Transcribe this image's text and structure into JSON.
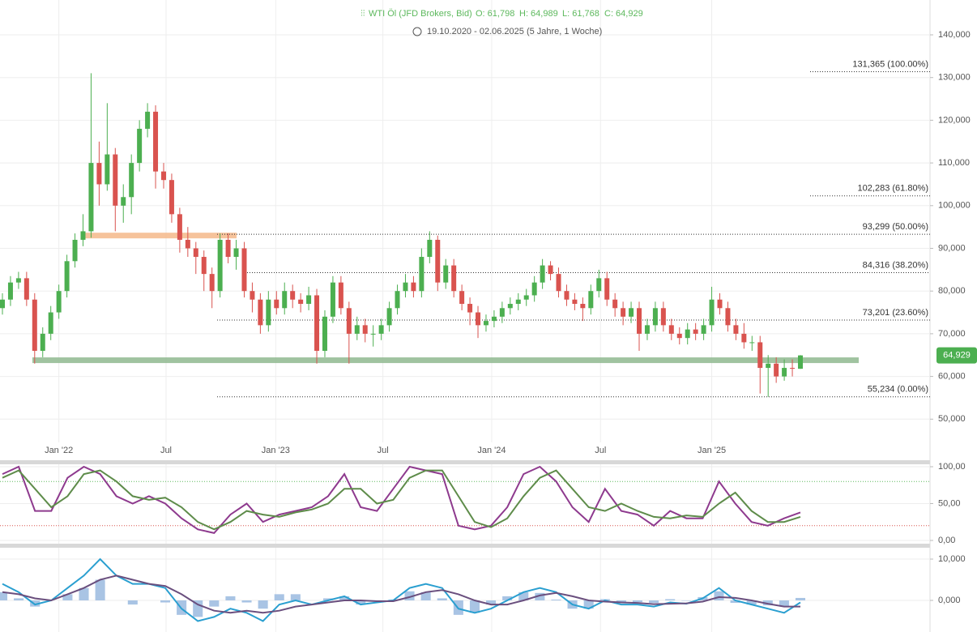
{
  "chart_data": [
    {
      "type": "candlestick",
      "title": "WTI Öl (JFD Brokers, Bid)",
      "ohlc_labels": [
        "O: 61,798",
        "H: 64,989",
        "L: 61,768",
        "C: 64,929"
      ],
      "subtitle": "19.10.2020 - 02.06.2025  (5 Jahre, 1 Woche)",
      "last_label": "64,929",
      "up_color": "#4caf50",
      "down_color": "#d9534f",
      "categories": [
        null,
        null,
        null,
        null,
        null,
        null,
        null,
        null,
        null,
        null,
        null,
        null,
        null,
        null,
        null,
        null,
        null,
        null,
        null,
        null,
        null,
        null,
        null,
        null,
        null,
        null,
        null,
        null,
        null,
        null,
        null,
        null,
        null,
        null,
        null,
        null,
        null,
        null,
        null,
        null,
        null,
        null,
        null,
        null,
        null,
        null,
        null,
        null,
        null,
        null,
        null,
        null,
        null,
        null,
        null,
        null,
        null,
        null,
        null,
        null,
        null,
        null,
        null,
        null,
        null,
        null,
        null,
        null,
        null,
        null,
        null,
        null,
        null,
        null,
        null,
        null,
        null,
        null,
        null,
        null,
        null,
        null,
        null,
        null,
        null,
        null,
        null,
        null,
        null,
        null,
        null,
        null,
        null,
        null,
        null,
        null,
        null,
        null,
        null,
        null
      ],
      "open": [
        76000,
        78000,
        82000,
        83000,
        78000,
        66000,
        70000,
        75000,
        80000,
        87000,
        92000,
        94000,
        110000,
        105000,
        112000,
        100000,
        102000,
        110000,
        118000,
        122000,
        108000,
        106000,
        98000,
        92000,
        90000,
        88000,
        84000,
        80000,
        92000,
        88000,
        90000,
        80000,
        78000,
        72000,
        78000,
        76000,
        80000,
        78000,
        77000,
        79000,
        66000,
        74000,
        82000,
        76000,
        70000,
        72000,
        70000,
        70000,
        72000,
        76000,
        80000,
        82000,
        80000,
        88000,
        92000,
        82000,
        86000,
        80000,
        77000,
        75000,
        72000,
        73000,
        74000,
        76000,
        77000,
        78000,
        79000,
        82000,
        86000,
        84000,
        80000,
        78000,
        77000,
        76000,
        80000,
        83000,
        78000,
        76000,
        74000,
        76000,
        70000,
        72000,
        76000,
        72000,
        70000,
        69000,
        71000,
        70000,
        72000,
        78000,
        76000,
        72000,
        70000,
        68000,
        68000,
        62000,
        63000,
        60000,
        62000,
        61798
      ],
      "high": [
        79500,
        83500,
        84500,
        84500,
        79500,
        71500,
        76500,
        81500,
        88500,
        93500,
        98000,
        131000,
        115000,
        124000,
        113500,
        105000,
        112000,
        120000,
        124000,
        123500,
        110000,
        107500,
        99500,
        95000,
        91500,
        89500,
        85500,
        93500,
        93500,
        92000,
        91500,
        82000,
        79500,
        80000,
        80000,
        82000,
        81500,
        79500,
        81000,
        80500,
        75500,
        83500,
        83500,
        77500,
        74000,
        73500,
        72000,
        73500,
        77500,
        81500,
        84000,
        83500,
        90000,
        94000,
        93000,
        87500,
        87500,
        81500,
        78500,
        76500,
        74500,
        75500,
        77500,
        78500,
        79500,
        80500,
        83500,
        87500,
        87000,
        85500,
        81500,
        79500,
        78500,
        81500,
        85000,
        84500,
        79500,
        77500,
        77500,
        77500,
        73500,
        77500,
        77500,
        73500,
        71500,
        72500,
        72500,
        73500,
        81000,
        79500,
        77500,
        73500,
        72500,
        69500,
        69500,
        65000,
        64500,
        64000,
        64000,
        64989
      ],
      "low": [
        74500,
        76500,
        80500,
        76500,
        63000,
        64500,
        68500,
        73500,
        78500,
        85500,
        90500,
        92500,
        100000,
        103500,
        94000,
        96000,
        98000,
        108000,
        116000,
        104000,
        104000,
        96000,
        89000,
        88000,
        84000,
        80000,
        76000,
        78500,
        86500,
        85000,
        78500,
        75000,
        70000,
        70500,
        74500,
        74500,
        76000,
        75000,
        75500,
        63000,
        64500,
        72500,
        74500,
        63000,
        68500,
        68000,
        67000,
        68500,
        70500,
        74500,
        78500,
        78500,
        78500,
        86500,
        80000,
        80500,
        78500,
        75500,
        72000,
        69000,
        70500,
        71500,
        72500,
        74500,
        75500,
        76500,
        77500,
        80500,
        82500,
        78500,
        76500,
        75500,
        73000,
        74500,
        78500,
        76500,
        74000,
        72000,
        72500,
        66000,
        68500,
        70500,
        70500,
        68500,
        67500,
        67500,
        68500,
        68500,
        70500,
        74500,
        70500,
        68500,
        66500,
        66000,
        56000,
        55234,
        58500,
        59000,
        60000,
        61768
      ],
      "close": [
        78000,
        82000,
        83000,
        78000,
        66000,
        70000,
        75000,
        80000,
        87000,
        92000,
        94000,
        110000,
        105000,
        112000,
        100000,
        102000,
        110000,
        118000,
        122000,
        108000,
        106000,
        98000,
        92000,
        90000,
        88000,
        84000,
        80000,
        92000,
        88000,
        90000,
        80000,
        78000,
        72000,
        78000,
        76000,
        80000,
        78000,
        77000,
        79000,
        66000,
        74000,
        82000,
        76000,
        70000,
        72000,
        70000,
        70000,
        72000,
        76000,
        80000,
        82000,
        80000,
        88000,
        92000,
        82000,
        86000,
        80000,
        77000,
        75000,
        72000,
        73000,
        74000,
        76000,
        77000,
        78000,
        79000,
        82000,
        86000,
        84000,
        80000,
        78000,
        77000,
        76000,
        80000,
        83000,
        78000,
        76000,
        74000,
        76000,
        70000,
        72000,
        76000,
        72000,
        70000,
        69000,
        71000,
        70000,
        72000,
        78000,
        76000,
        72000,
        70000,
        68000,
        68000,
        62000,
        63000,
        60000,
        62000,
        61798,
        64929
      ],
      "ylim": [
        40380,
        148160
      ],
      "yticks": [
        {
          "value": 50000,
          "label": "50,000"
        },
        {
          "value": 60000,
          "label": "60,000"
        },
        {
          "value": 70000,
          "label": "70,000"
        },
        {
          "value": 80000,
          "label": "80,000"
        },
        {
          "value": 90000,
          "label": "90,000"
        },
        {
          "value": 100000,
          "label": "100,000"
        },
        {
          "value": 110000,
          "label": "110,000"
        },
        {
          "value": 120000,
          "label": "120,000"
        },
        {
          "value": 130000,
          "label": "130,000"
        },
        {
          "value": 140000,
          "label": "140,000"
        }
      ],
      "xticks": [
        {
          "value": 7,
          "label": "Jan '22"
        },
        {
          "value": 20.3,
          "label": "Jul"
        },
        {
          "value": 33.9,
          "label": "Jan '23"
        },
        {
          "value": 47.2,
          "label": "Jul"
        },
        {
          "value": 60.7,
          "label": "Jan '24"
        },
        {
          "value": 74.2,
          "label": "Jul"
        },
        {
          "value": 88,
          "label": "Jan '25"
        }
      ],
      "grid": true,
      "fib_levels": [
        {
          "value": 131365,
          "label": "131,365 (100.00%)"
        },
        {
          "value": 102283,
          "label": "102,283 (61.80%)"
        },
        {
          "value": 93299,
          "label": "93,299 (50.00%)"
        },
        {
          "value": 84316,
          "label": "84,316 (38.20%)"
        },
        {
          "value": 73201,
          "label": "73,201 (23.60%)"
        },
        {
          "value": 55234,
          "label": "55,234 (0.00%)"
        }
      ],
      "zones": [
        {
          "value": 63800,
          "color": "#8fb98f"
        },
        {
          "value": 93000,
          "color": "#f5b98a"
        }
      ]
    },
    {
      "type": "line",
      "categories": [
        null,
        null,
        null,
        null,
        null,
        null,
        null,
        null,
        null,
        null,
        null,
        null,
        null,
        null,
        null,
        null,
        null,
        null,
        null,
        null,
        null,
        null,
        null,
        null,
        null,
        null,
        null,
        null,
        null,
        null,
        null,
        null,
        null,
        null,
        null,
        null,
        null,
        null,
        null,
        null,
        null,
        null,
        null,
        null,
        null,
        null,
        null,
        null,
        null,
        null
      ],
      "series": [
        {
          "color": "#8e3a8e",
          "values": [
            90,
            100,
            40,
            40,
            85,
            100,
            90,
            60,
            50,
            60,
            50,
            30,
            15,
            10,
            35,
            50,
            25,
            35,
            40,
            45,
            60,
            90,
            45,
            40,
            70,
            100,
            95,
            90,
            20,
            15,
            20,
            45,
            90,
            100,
            80,
            45,
            25,
            70,
            40,
            35,
            20,
            40,
            30,
            30,
            80,
            50,
            25,
            20,
            30,
            38
          ]
        },
        {
          "color": "#5e8c4a",
          "values": [
            85,
            95,
            70,
            45,
            60,
            90,
            95,
            80,
            60,
            55,
            58,
            45,
            25,
            15,
            25,
            40,
            35,
            32,
            38,
            42,
            50,
            70,
            70,
            50,
            55,
            85,
            95,
            95,
            60,
            25,
            18,
            30,
            60,
            85,
            95,
            70,
            45,
            40,
            50,
            40,
            32,
            30,
            34,
            32,
            50,
            65,
            40,
            25,
            25,
            32
          ]
        }
      ],
      "levels": [
        {
          "value": 80,
          "color": "#5cb85c"
        },
        {
          "value": 20,
          "color": "#d9534f"
        }
      ],
      "ylim": [
        -4.4,
        103.3
      ],
      "yticks": [
        {
          "value": 0,
          "label": "0,00"
        },
        {
          "value": 50,
          "label": "50,00"
        },
        {
          "value": 100,
          "label": "100,00"
        }
      ]
    },
    {
      "type": "combo",
      "categories": [
        null,
        null,
        null,
        null,
        null,
        null,
        null,
        null,
        null,
        null,
        null,
        null,
        null,
        null,
        null,
        null,
        null,
        null,
        null,
        null,
        null,
        null,
        null,
        null,
        null,
        null,
        null,
        null,
        null,
        null,
        null,
        null,
        null,
        null,
        null,
        null,
        null,
        null,
        null,
        null,
        null,
        null,
        null,
        null,
        null,
        null,
        null,
        null,
        null,
        null
      ],
      "bars": {
        "color": "#a9c4e4",
        "values": [
          2000,
          500,
          -1500,
          0,
          1500,
          3000,
          5000,
          0,
          -1000,
          0,
          -500,
          -3500,
          -4000,
          -1500,
          1000,
          -500,
          -2000,
          1500,
          1500,
          0,
          500,
          1000,
          -1000,
          -300,
          200,
          2200,
          2000,
          500,
          -3500,
          -3000,
          -1000,
          1000,
          2000,
          1800,
          200,
          -2000,
          -2000,
          300,
          -500,
          -400,
          -600,
          300,
          -100,
          800,
          2200,
          -600,
          -1000,
          -1200,
          -1500,
          600
        ]
      },
      "series": [
        {
          "color": "#2a9fd0",
          "values": [
            4000,
            2000,
            -1000,
            0,
            3000,
            6000,
            10000,
            6000,
            4000,
            4000,
            3000,
            -2000,
            -5000,
            -4000,
            -2000,
            -3000,
            -5000,
            -1000,
            0,
            -1000,
            0,
            1000,
            -1000,
            -500,
            0,
            3000,
            4000,
            3000,
            -2000,
            -3000,
            -2000,
            0,
            2000,
            3000,
            2000,
            -1000,
            -2000,
            0,
            -1000,
            -1000,
            -1500,
            -500,
            -800,
            500,
            3000,
            0,
            -1000,
            -2000,
            -3000,
            -500
          ]
        },
        {
          "color": "#6a4f7e",
          "values": [
            2000,
            1500,
            500,
            0,
            1500,
            3000,
            5000,
            6000,
            5000,
            4000,
            3500,
            1500,
            -1000,
            -2500,
            -3000,
            -2500,
            -3000,
            -2500,
            -1500,
            -1000,
            -500,
            0,
            0,
            -200,
            -200,
            800,
            2000,
            2500,
            1500,
            0,
            -1000,
            -1000,
            0,
            1200,
            1800,
            1000,
            0,
            -300,
            -500,
            -600,
            -900,
            -800,
            -700,
            -300,
            800,
            600,
            0,
            -800,
            -1500,
            -1500
          ]
        }
      ],
      "ylim": [
        -7650,
        12750
      ],
      "yticks": [
        {
          "value": 0,
          "label": "0,000"
        },
        {
          "value": 10000,
          "label": "10,000"
        }
      ]
    }
  ]
}
